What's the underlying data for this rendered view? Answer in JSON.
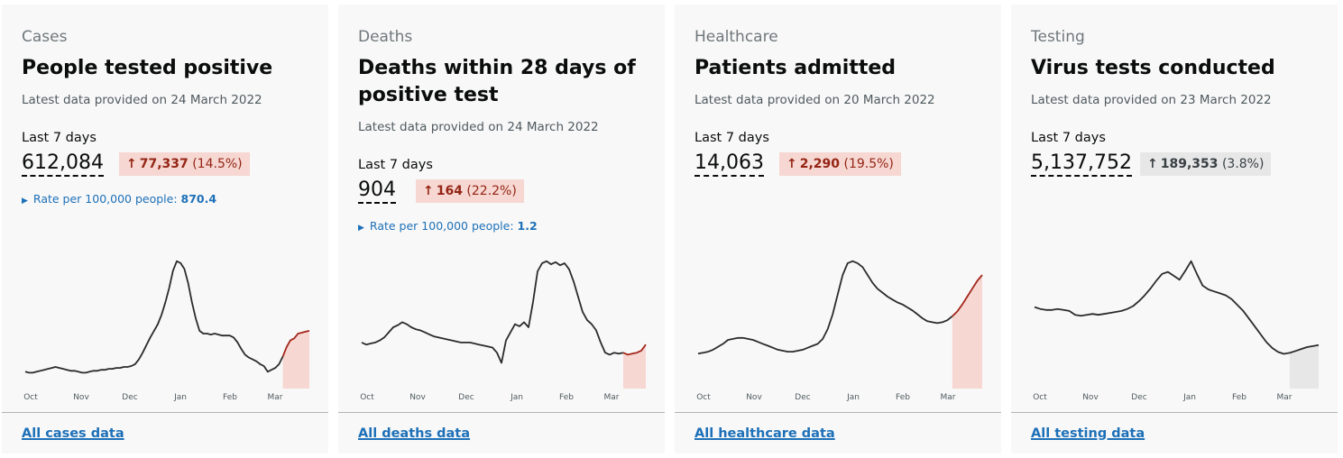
{
  "cards": [
    {
      "category": "Cases",
      "title": "People tested positive",
      "updated": "Latest data provided on 24 March 2022",
      "metric_label": "Last 7 days",
      "metric_value": "612,084",
      "change_arrow": "↑",
      "change_value": "77,337",
      "change_pct": "(14.5%)",
      "rate_prefix": "Rate per 100,000 people:",
      "rate_value": "870.4",
      "rate_arrow": "▶",
      "link": "All cases data",
      "accent": "#942514",
      "highlight": "#f6d7d2",
      "chart_data": {
        "type": "line",
        "x_ticks": [
          "Oct",
          "Nov",
          "Dec",
          "Jan",
          "Feb",
          "Mar"
        ],
        "values": [
          12,
          11,
          11,
          12,
          13,
          14,
          15,
          16,
          17,
          16,
          15,
          14,
          13,
          13,
          12,
          11,
          11,
          12,
          13,
          13,
          14,
          14,
          15,
          15,
          16,
          16,
          17,
          17,
          18,
          20,
          25,
          32,
          40,
          48,
          55,
          62,
          72,
          85,
          100,
          118,
          128,
          126,
          120,
          105,
          85,
          68,
          55,
          52,
          52,
          51,
          52,
          51,
          50,
          50,
          50,
          48,
          43,
          36,
          30,
          27,
          25,
          23,
          20,
          18,
          12,
          14,
          16,
          20,
          28,
          38,
          45,
          47,
          52,
          53,
          54,
          55
        ],
        "highlight_last": 7
      }
    },
    {
      "category": "Deaths",
      "title": "Deaths within 28 days of positive test",
      "updated": "Latest data provided on 24 March 2022",
      "metric_label": "Last 7 days",
      "metric_value": "904",
      "change_arrow": "↑",
      "change_value": "164",
      "change_pct": "(22.2%)",
      "rate_prefix": "Rate per 100,000 people:",
      "rate_value": "1.2",
      "rate_arrow": "▶",
      "link": "All deaths data",
      "accent": "#942514",
      "highlight": "#f6d7d2",
      "chart_data": {
        "type": "line",
        "x_ticks": [
          "Oct",
          "Nov",
          "Dec",
          "Jan",
          "Feb",
          "Mar"
        ],
        "values": [
          40,
          38,
          39,
          40,
          42,
          45,
          50,
          55,
          57,
          60,
          58,
          55,
          53,
          52,
          50,
          48,
          46,
          45,
          44,
          43,
          42,
          41,
          40,
          40,
          40,
          39,
          38,
          37,
          36,
          35,
          30,
          20,
          42,
          50,
          58,
          56,
          60,
          55,
          80,
          110,
          118,
          120,
          117,
          119,
          116,
          118,
          112,
          100,
          85,
          70,
          62,
          58,
          52,
          40,
          30,
          28,
          30,
          29,
          30,
          28,
          29,
          30,
          32,
          38
        ],
        "highlight_last": 5
      }
    },
    {
      "category": "Healthcare",
      "title": "Patients admitted",
      "updated": "Latest data provided on 20 March 2022",
      "metric_label": "Last 7 days",
      "metric_value": "14,063",
      "change_arrow": "↑",
      "change_value": "2,290",
      "change_pct": "(19.5%)",
      "link": "All healthcare data",
      "accent": "#942514",
      "highlight": "#f6d7d2",
      "chart_data": {
        "type": "line",
        "x_ticks": [
          "Oct",
          "Nov",
          "Dec",
          "Jan",
          "Feb",
          "Mar"
        ],
        "values": [
          30,
          31,
          32,
          34,
          37,
          40,
          44,
          45,
          46,
          46,
          45,
          44,
          42,
          40,
          38,
          36,
          34,
          33,
          32,
          32,
          33,
          34,
          36,
          38,
          40,
          45,
          55,
          70,
          90,
          110,
          122,
          124,
          122,
          118,
          110,
          102,
          96,
          92,
          88,
          85,
          82,
          80,
          77,
          74,
          70,
          66,
          63,
          62,
          61,
          62,
          64,
          68,
          73,
          80,
          88,
          96,
          104,
          110
        ],
        "highlight_last": 6
      }
    },
    {
      "category": "Testing",
      "title": "Virus tests conducted",
      "updated": "Latest data provided on 23 March 2022",
      "metric_label": "Last 7 days",
      "metric_value": "5,137,752",
      "change_arrow": "↑",
      "change_value": "189,353",
      "change_pct": "(3.8%)",
      "link": "All testing data",
      "accent": "#383f43",
      "highlight": "#e7e7e7",
      "chart_data": {
        "type": "line",
        "x_ticks": [
          "Oct",
          "Nov",
          "Dec",
          "Jan",
          "Feb",
          "Mar"
        ],
        "values": [
          78,
          76,
          75,
          75,
          76,
          75,
          74,
          70,
          69,
          70,
          71,
          70,
          71,
          72,
          73,
          74,
          76,
          79,
          84,
          90,
          97,
          105,
          112,
          114,
          110,
          106,
          115,
          125,
          112,
          100,
          96,
          94,
          92,
          90,
          86,
          80,
          74,
          66,
          58,
          50,
          42,
          36,
          32,
          30,
          31,
          33,
          35,
          37,
          38,
          39
        ],
        "highlight_last": 5
      }
    }
  ]
}
